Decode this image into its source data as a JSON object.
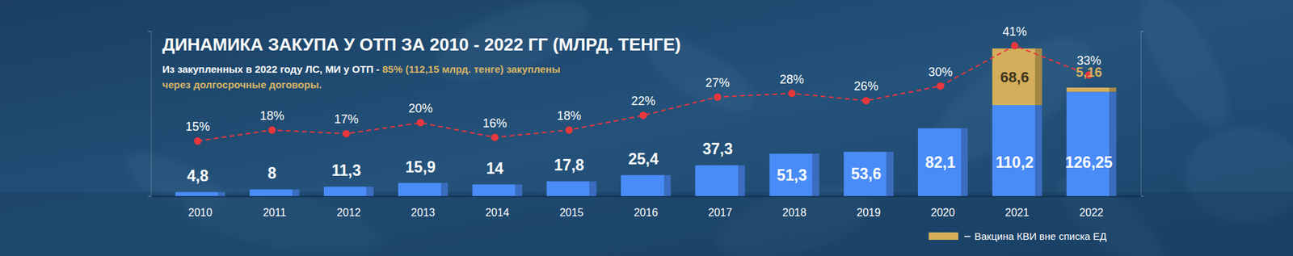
{
  "chart_data": {
    "type": "bar",
    "title": "ДИНАМИКА ЗАКУПА У ОТП ЗА 2010 - 2022 ГГ (МЛРД. ТЕНГЕ)",
    "subtitle": "Из закупленных в 2022 году ЛС, МИ у ОТП -",
    "annotations": [
      "85% (112,15 млрд. тенге) закуплены через долгосрочные договоры."
    ],
    "categories": [
      "2010",
      "2011",
      "2012",
      "2013",
      "2014",
      "2015",
      "2016",
      "2017",
      "2018",
      "2019",
      "2020",
      "2021",
      "2022"
    ],
    "series": [
      {
        "type": "bar",
        "color": "#4a8cf7",
        "values": [
          4.8,
          8,
          11.3,
          15.9,
          14,
          17.8,
          25.4,
          37.3,
          51.3,
          53.6,
          82.1,
          110.2,
          126.25
        ],
        "value_labels": [
          "4,8",
          "8",
          "11,3",
          "15,9",
          "14",
          "17,8",
          "25,4",
          "37,3",
          "51,3",
          "53,6",
          "82,1",
          "110,2",
          "126,25"
        ]
      },
      {
        "name": "Вакцина КВИ вне списка ЕД",
        "type": "bar",
        "color": "#d4ae5a",
        "values": [
          null,
          null,
          null,
          null,
          null,
          null,
          null,
          null,
          null,
          null,
          null,
          68.6,
          5.16
        ],
        "value_labels": [
          null,
          null,
          null,
          null,
          null,
          null,
          null,
          null,
          null,
          null,
          null,
          "68,6",
          "5,16"
        ]
      },
      {
        "type": "line",
        "axis": "y2",
        "color": "#e8373d",
        "marker": "circle",
        "line_style": "dashed",
        "values": [
          15,
          18,
          17,
          20,
          16,
          18,
          22,
          27,
          28,
          26,
          30,
          41,
          33
        ],
        "value_labels": [
          "15%",
          "18%",
          "17%",
          "20%",
          "16%",
          "18%",
          "22%",
          "27%",
          "28%",
          "26%",
          "30%",
          "41%",
          "33%"
        ]
      }
    ],
    "ylim": [
      0,
      200
    ],
    "yticks": [
      0,
      200
    ],
    "y2lim": [
      0,
      45
    ],
    "y2ticks": [
      0,
      45
    ],
    "stacked": true,
    "data_labels": true,
    "tick_labels": "x",
    "legend": "bottom-right",
    "grid": false
  }
}
